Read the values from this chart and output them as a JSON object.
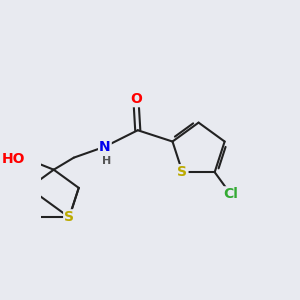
{
  "background_color": "#e8eaf0",
  "atom_colors": {
    "O": "#ff0000",
    "N": "#0000ee",
    "S": "#bbaa00",
    "Cl": "#33aa33",
    "C": "#222222",
    "H": "#555555"
  },
  "bond_color": "#222222",
  "bond_width": 1.5,
  "font_size": 10,
  "figsize": [
    3.0,
    3.0
  ],
  "dpi": 100
}
